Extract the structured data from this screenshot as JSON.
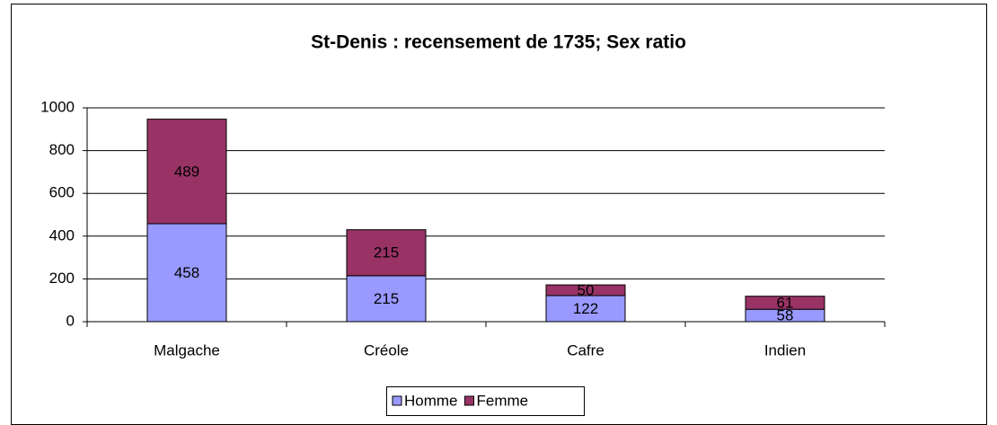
{
  "chart_data": {
    "type": "stacked_bar",
    "title": "St-Denis : recensement de 1735; Sex ratio",
    "categories": [
      "Malgache",
      "Créole",
      "Cafre",
      "Indien"
    ],
    "series": [
      {
        "name": "Homme",
        "color": "#9999ff",
        "values": [
          458,
          215,
          122,
          58
        ]
      },
      {
        "name": "Femme",
        "color": "#993366",
        "values": [
          489,
          215,
          50,
          61
        ]
      }
    ],
    "ylim": [
      0,
      1000
    ],
    "yticks": [
      0,
      200,
      400,
      600,
      800,
      1000
    ],
    "grid": true,
    "legend": "bottom"
  }
}
